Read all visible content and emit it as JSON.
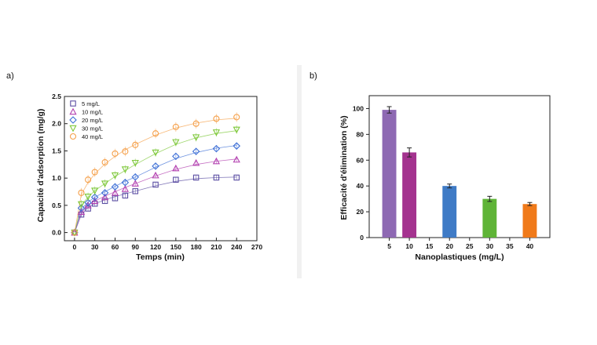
{
  "panels": {
    "left_letter": "a)",
    "right_letter": "b)"
  },
  "chart_data": [
    {
      "type": "scatter",
      "xlabel": "Temps (min)",
      "ylabel": "Capacité d'adsorption (mg/g)",
      "xlim": [
        -15,
        270
      ],
      "ylim": [
        -0.15,
        2.5
      ],
      "xticks": [
        0,
        30,
        60,
        90,
        120,
        150,
        180,
        210,
        240,
        270
      ],
      "yticks": [
        0.0,
        0.5,
        1.0,
        1.5,
        2.0,
        2.5
      ],
      "legend_position": "top-left",
      "grid": false,
      "x": [
        0,
        10,
        20,
        30,
        45,
        60,
        75,
        90,
        120,
        150,
        180,
        210,
        240
      ],
      "series": [
        {
          "name": "5 mg/L",
          "marker": "square",
          "color": "#5b4ea3",
          "values": [
            0.0,
            0.33,
            0.44,
            0.53,
            0.58,
            0.63,
            0.68,
            0.76,
            0.88,
            0.97,
            1.01,
            1.01,
            1.01
          ],
          "fit": [
            0.0,
            0.33,
            0.46,
            0.53,
            0.6,
            0.66,
            0.71,
            0.76,
            0.86,
            0.94,
            0.99,
            1.01,
            1.02
          ]
        },
        {
          "name": "10 mg/L",
          "marker": "triangle-up",
          "color": "#b341b0",
          "values": [
            0.0,
            0.38,
            0.5,
            0.58,
            0.65,
            0.73,
            0.8,
            0.9,
            1.05,
            1.18,
            1.28,
            1.31,
            1.34
          ],
          "fit": [
            0.0,
            0.36,
            0.5,
            0.58,
            0.67,
            0.75,
            0.83,
            0.9,
            1.04,
            1.16,
            1.25,
            1.31,
            1.35
          ]
        },
        {
          "name": "20 mg/L",
          "marker": "diamond",
          "color": "#3d6fd6",
          "values": [
            0.0,
            0.45,
            0.55,
            0.65,
            0.73,
            0.84,
            0.92,
            1.02,
            1.22,
            1.4,
            1.49,
            1.54,
            1.59
          ],
          "fit": [
            0.0,
            0.43,
            0.56,
            0.65,
            0.75,
            0.85,
            0.94,
            1.02,
            1.2,
            1.36,
            1.47,
            1.55,
            1.6
          ]
        },
        {
          "name": "30 mg/L",
          "marker": "triangle-down",
          "color": "#7ec83a",
          "values": [
            0.0,
            0.52,
            0.66,
            0.77,
            0.9,
            1.05,
            1.16,
            1.28,
            1.47,
            1.66,
            1.75,
            1.84,
            1.89
          ],
          "fit": [
            0.0,
            0.5,
            0.65,
            0.77,
            0.9,
            1.03,
            1.14,
            1.25,
            1.45,
            1.62,
            1.74,
            1.82,
            1.87
          ]
        },
        {
          "name": "40 mg/L",
          "marker": "circle",
          "color": "#f5a04a",
          "values": [
            0.0,
            0.73,
            0.97,
            1.11,
            1.29,
            1.45,
            1.49,
            1.61,
            1.82,
            1.94,
            2.0,
            2.09,
            2.12
          ],
          "fit": [
            0.0,
            0.7,
            0.92,
            1.08,
            1.26,
            1.4,
            1.52,
            1.62,
            1.79,
            1.92,
            2.01,
            2.07,
            2.1
          ]
        }
      ]
    },
    {
      "type": "bar",
      "xlabel": "Nanoplastiques (mg/L)",
      "ylabel": "Efficacité d'élimination (%)",
      "xlim": [
        0,
        45
      ],
      "ylim": [
        0,
        110
      ],
      "xticks": [
        5,
        10,
        15,
        20,
        25,
        30,
        35,
        40
      ],
      "yticks": [
        0,
        20,
        40,
        60,
        80,
        100
      ],
      "bar_width": 3.5,
      "grid": false,
      "bars": [
        {
          "x": 5,
          "value": 99,
          "error": 2.5,
          "color": "#8e69b3"
        },
        {
          "x": 10,
          "value": 66,
          "error": 3.5,
          "color": "#a4338f"
        },
        {
          "x": 20,
          "value": 40,
          "error": 1.5,
          "color": "#3f7bc6"
        },
        {
          "x": 30,
          "value": 30,
          "error": 2.0,
          "color": "#5fb437"
        },
        {
          "x": 40,
          "value": 26,
          "error": 1.2,
          "color": "#f07a1a"
        }
      ]
    }
  ]
}
